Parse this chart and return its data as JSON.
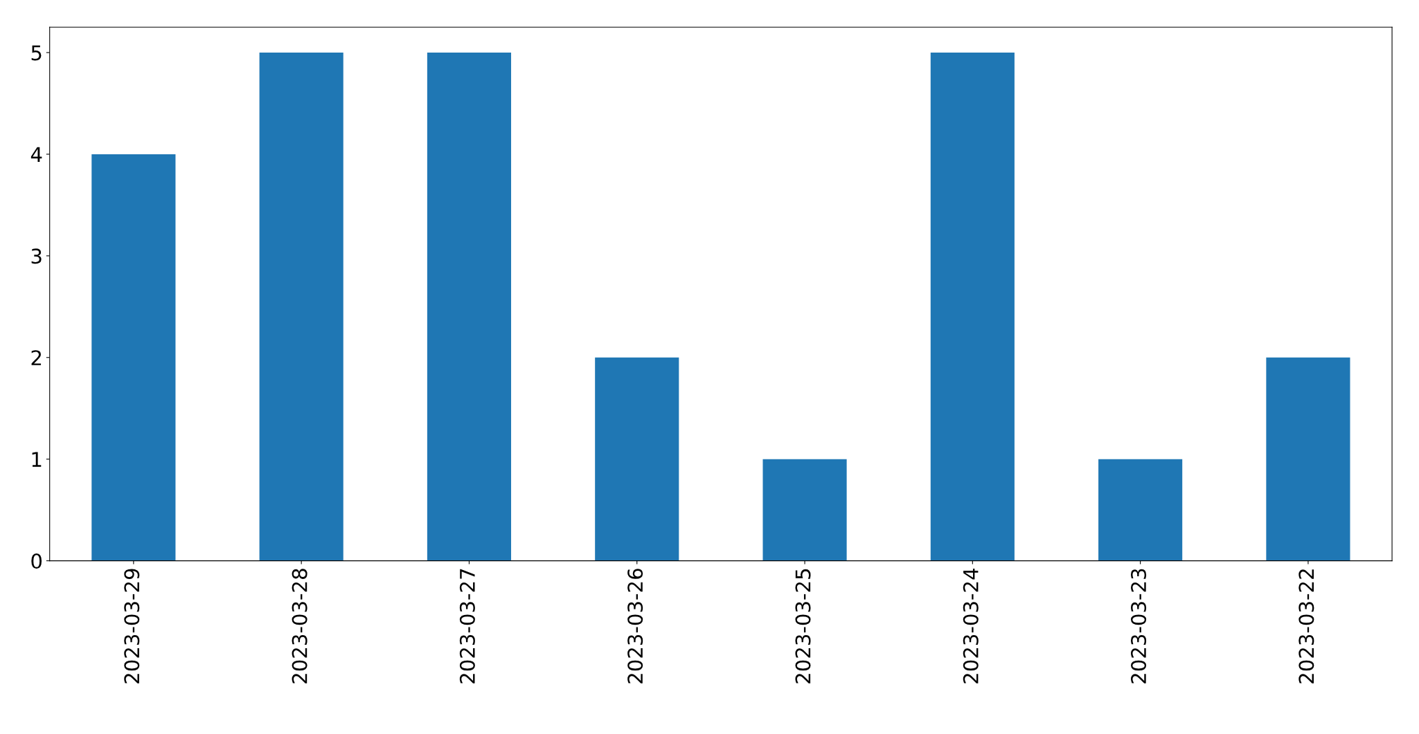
{
  "chart_data": {
    "type": "bar",
    "categories": [
      "2023-03-29",
      "2023-03-28",
      "2023-03-27",
      "2023-03-26",
      "2023-03-25",
      "2023-03-24",
      "2023-03-23",
      "2023-03-22"
    ],
    "values": [
      4,
      5,
      5,
      2,
      1,
      5,
      1,
      2
    ],
    "color": "#1f77b4",
    "ylim": [
      0,
      5.25
    ],
    "yticks": [
      0,
      1,
      2,
      3,
      4,
      5
    ],
    "grid": false,
    "legend": false
  }
}
